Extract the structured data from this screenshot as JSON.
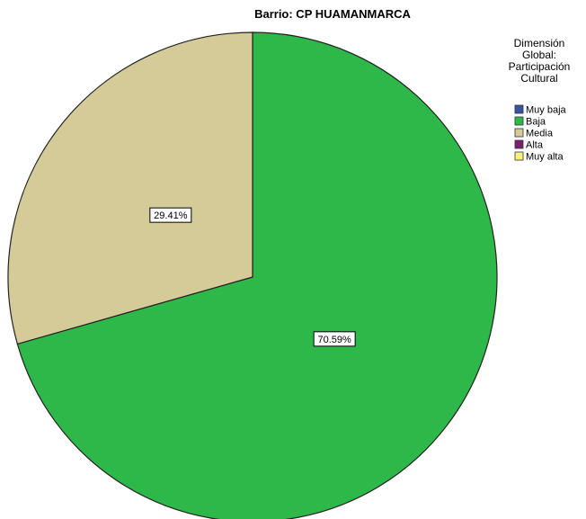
{
  "chart_data": {
    "type": "pie",
    "title": "Barrio: CP HUAMANMARCA",
    "legend": {
      "title_lines": [
        "Dimensión",
        "Global:",
        "Participación",
        "Cultural"
      ],
      "placement": "right",
      "items": [
        {
          "label": "Muy baja",
          "color": "#3953A4"
        },
        {
          "label": "Baja",
          "color": "#2FB84A"
        },
        {
          "label": "Media",
          "color": "#D4CB98"
        },
        {
          "label": "Alta",
          "color": "#7B1E6E"
        },
        {
          "label": "Muy alta",
          "color": "#F8F27A"
        }
      ]
    },
    "slices": [
      {
        "category": "Baja",
        "value": 70.59,
        "label": "70.59%",
        "color": "#2FB84A"
      },
      {
        "category": "Media",
        "value": 29.41,
        "label": "29.41%",
        "color": "#D4CB98"
      }
    ]
  }
}
